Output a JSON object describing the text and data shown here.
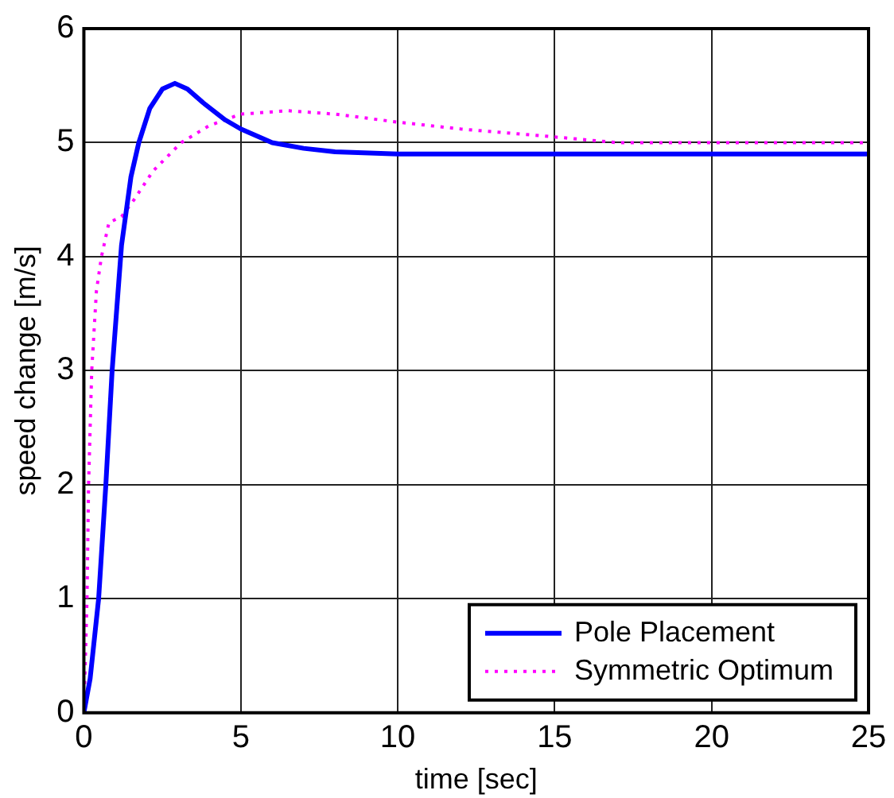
{
  "chart_data": {
    "type": "line",
    "xlabel": "time [sec]",
    "ylabel": "speed change [m/s]",
    "xlim": [
      0,
      25
    ],
    "ylim": [
      0,
      6
    ],
    "xticks": [
      0,
      5,
      10,
      15,
      20,
      25
    ],
    "yticks": [
      0,
      1,
      2,
      3,
      4,
      5,
      6
    ],
    "grid": true,
    "legend": "bottom right",
    "marker": "none",
    "series": [
      {
        "name": "Pole Placement",
        "color": "#0000ff",
        "line_style": "solid",
        "x": [
          0,
          0.2,
          0.47,
          0.7,
          0.9,
          1.2,
          1.5,
          1.75,
          2.1,
          2.5,
          2.9,
          3.3,
          3.8,
          4.5,
          5,
          6,
          7,
          8,
          10,
          15,
          20,
          25
        ],
        "values": [
          0,
          0.3,
          1,
          2,
          3,
          4.1,
          4.7,
          5,
          5.3,
          5.47,
          5.52,
          5.47,
          5.35,
          5.2,
          5.12,
          5.0,
          4.95,
          4.92,
          4.9,
          4.9,
          4.9,
          4.9
        ]
      },
      {
        "name": "Symmetric Optimum",
        "color": "#ff00ff",
        "line_style": "dotted",
        "x": [
          0,
          0.05,
          0.1,
          0.15,
          0.25,
          0.4,
          0.56,
          0.8,
          1.2,
          1.6,
          2.2,
          3.1,
          4,
          5,
          6.5,
          8,
          10,
          12,
          15,
          17,
          20,
          25
        ],
        "values": [
          0,
          0.5,
          1,
          2,
          3,
          3.7,
          4,
          4.3,
          4.35,
          4.5,
          4.75,
          5,
          5.15,
          5.25,
          5.28,
          5.25,
          5.18,
          5.12,
          5.05,
          5.0,
          5.0,
          5.0
        ]
      }
    ]
  }
}
